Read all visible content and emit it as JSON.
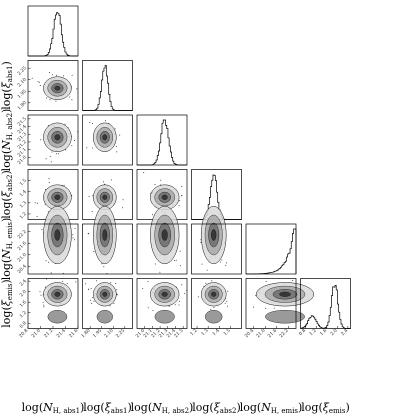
{
  "chart_data": {
    "type": "corner",
    "params": [
      {
        "label_base": "log(",
        "sym": "N",
        "sub": "H, abs1",
        "label_close": ")",
        "range": [
          20.8,
          21.6
        ],
        "ticks": [
          "20.8",
          "21.0",
          "21.2",
          "21.4",
          "21.6"
        ],
        "mode": 21.27,
        "sigma": 0.06
      },
      {
        "label_base": "log(",
        "sym": "ξ",
        "sub": "abs1",
        "label_close": ")",
        "range": [
          1.7,
          2.35
        ],
        "ticks": [
          "1.80",
          "1.95",
          "2.10",
          "2.25"
        ],
        "mode": 1.99,
        "sigma": 0.04
      },
      {
        "label_base": "log(",
        "sym": "N",
        "sub": "H, abs2",
        "label_close": ")",
        "range": [
          20.9,
          21.55
        ],
        "ticks": [
          "21.0",
          "21.1",
          "21.2",
          "21.3",
          "21.4",
          "21.5"
        ],
        "mode": 21.26,
        "sigma": 0.05
      },
      {
        "label_base": "log(",
        "sym": "ξ",
        "sub": "abs2",
        "label_close": ")",
        "range": [
          1.15,
          1.6
        ],
        "ticks": [
          "1.2",
          "1.3",
          "1.4",
          "1.5"
        ],
        "mode": 1.35,
        "sigma": 0.03
      },
      {
        "label_base": "log(",
        "sym": "N",
        "sub": "H, emis",
        "label_close": ")",
        "range": [
          20.0,
          22.6
        ],
        "ticks": [
          "20.4",
          "21.0",
          "21.6",
          "22.2"
        ],
        "mode": 22.5,
        "sigma": 0.4
      },
      {
        "label_base": "log(",
        "sym": "ξ",
        "sub": "emis",
        "label_close": ")",
        "range": [
          0.6,
          2.5
        ],
        "ticks": [
          "0.8",
          "1.2",
          "1.6",
          "2.0",
          "2.4"
        ],
        "mode": 1.9,
        "sigma": 0.12,
        "secondary_mode": 1.05
      }
    ],
    "grid": false,
    "legend": "none",
    "colors": {
      "contour": "#111111",
      "density_dark": "#2b2b2b",
      "histogram": "#000000"
    }
  }
}
